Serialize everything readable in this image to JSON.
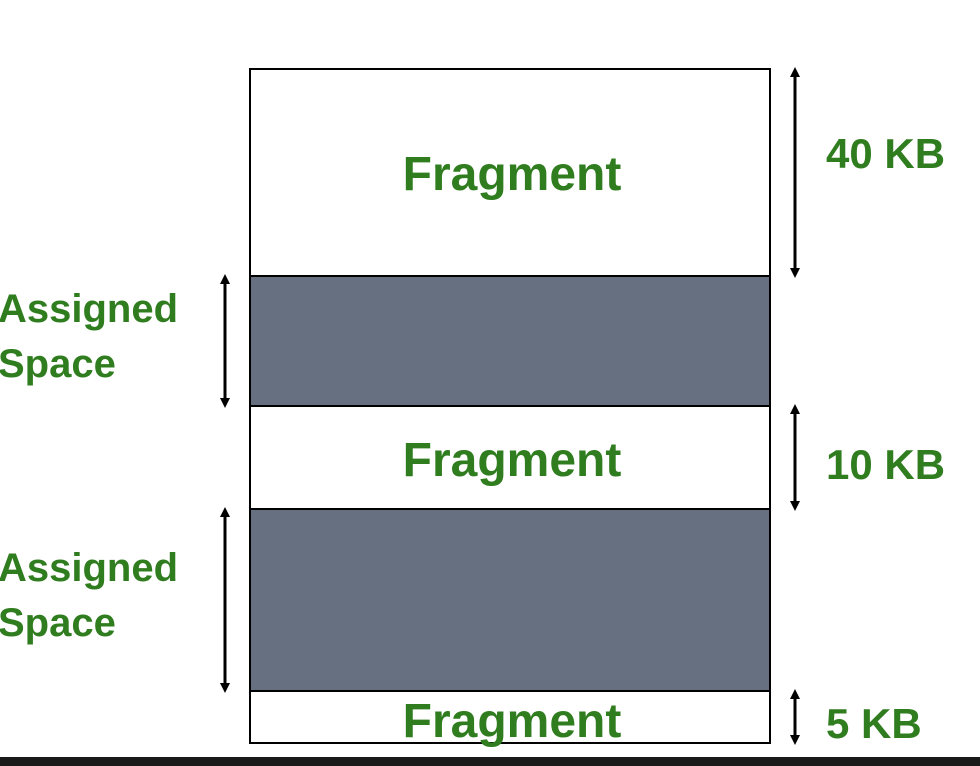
{
  "blocks": [
    {
      "type": "fragment",
      "label": "Fragment",
      "size_label": "40 KB"
    },
    {
      "type": "assigned",
      "side_label": [
        "Assigned",
        "Space"
      ]
    },
    {
      "type": "fragment",
      "label": "Fragment",
      "size_label": "10 KB"
    },
    {
      "type": "assigned",
      "side_label": [
        "Assigned",
        "Space"
      ]
    },
    {
      "type": "fragment",
      "label": "Fragment",
      "size_label": "5 KB"
    }
  ],
  "colors": {
    "fragment_fill": "#ffffff",
    "assigned_fill": "#667080",
    "label_text": "#2f7d1f",
    "outline": "#000000",
    "bottom_bar": "#1a1a1a"
  }
}
